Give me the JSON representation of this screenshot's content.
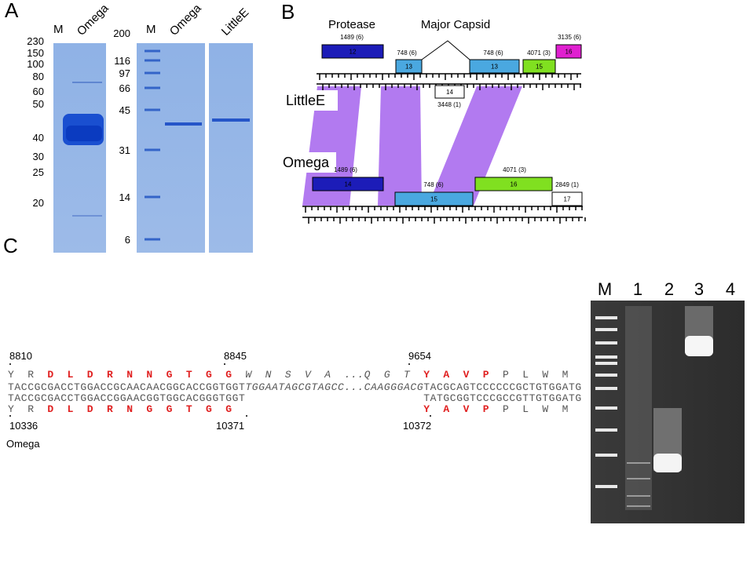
{
  "panel_a": {
    "label": "A",
    "gel_1": {
      "lanes": [
        "M",
        "Omega"
      ],
      "markers": [
        230,
        150,
        100,
        80,
        60,
        50,
        40,
        30,
        25,
        20
      ]
    },
    "gel_2": {
      "lanes": [
        "M",
        "Omega",
        "LittleE"
      ],
      "markers": [
        200,
        116,
        97,
        66,
        45,
        31,
        14,
        6
      ]
    }
  },
  "panel_b": {
    "label": "B",
    "headers": [
      "Protease",
      "Major Capsid"
    ],
    "genomes": [
      "LittleE",
      "Omega"
    ],
    "littlee_genes": [
      {
        "number": 12,
        "note": "1489 (6)"
      },
      {
        "number": 13,
        "note": "748 (6)"
      },
      {
        "number": 13,
        "note": "748 (6)"
      },
      {
        "number": 15,
        "note": "4071 (3)"
      },
      {
        "number": 16,
        "note": "3135 (6)"
      },
      {
        "number": 14,
        "note": "3448 (1)"
      }
    ],
    "omega_genes": [
      {
        "number": 14,
        "note": "1489 (6)"
      },
      {
        "number": 15,
        "note": "748 (6)"
      },
      {
        "number": 16,
        "note": "4071 (3)"
      },
      {
        "number": 17,
        "note": "2849 (1)"
      }
    ]
  },
  "panel_c": {
    "label": "C",
    "positions_top": [
      8810,
      8845,
      9654
    ],
    "positions_bottom": [
      10336,
      10371,
      10372
    ],
    "genome": "Omega",
    "rows": [
      [
        {
          "text": "Y  R  ",
          "style": "plain"
        },
        {
          "text": "D  L  D  R  N  N  G  T  G  G  ",
          "style": "red"
        },
        {
          "text": "W  N  S  V  A  ...Q  G  T  ",
          "style": "italic"
        },
        {
          "text": "Y  A  V  P",
          "style": "red"
        },
        {
          "text": "  P  L  W  M",
          "style": "plain"
        }
      ],
      [
        {
          "text": "TACCGCGACCTGGACCGCAACAACGGCACCGGTGGT",
          "style": "plain"
        },
        {
          "text": "TGGAATAGCGTAGCC...CAAGGGACG",
          "style": "italic"
        },
        {
          "text": "TACGCAGTCCCCCCGCTGTGGATG",
          "style": "plain"
        }
      ],
      [
        {
          "text": "TACCGCGACCTGGACCGGAACGGTGGCACGGGTGGT",
          "style": "plain"
        },
        {
          "text": "TATGCGGTCCCGCCGTTGTGGATG",
          "style": "plain"
        }
      ],
      [
        {
          "text": "Y  R  ",
          "style": "plain"
        },
        {
          "text": "D  L  D  R  N  G  G  T  G  G",
          "style": "red"
        },
        {
          "text": "Y  A  V  P",
          "style": "red"
        },
        {
          "text": "  P  L  W  M",
          "style": "plain"
        }
      ]
    ],
    "gel_lanes": [
      "M",
      "1",
      "2",
      "3",
      "4"
    ]
  }
}
